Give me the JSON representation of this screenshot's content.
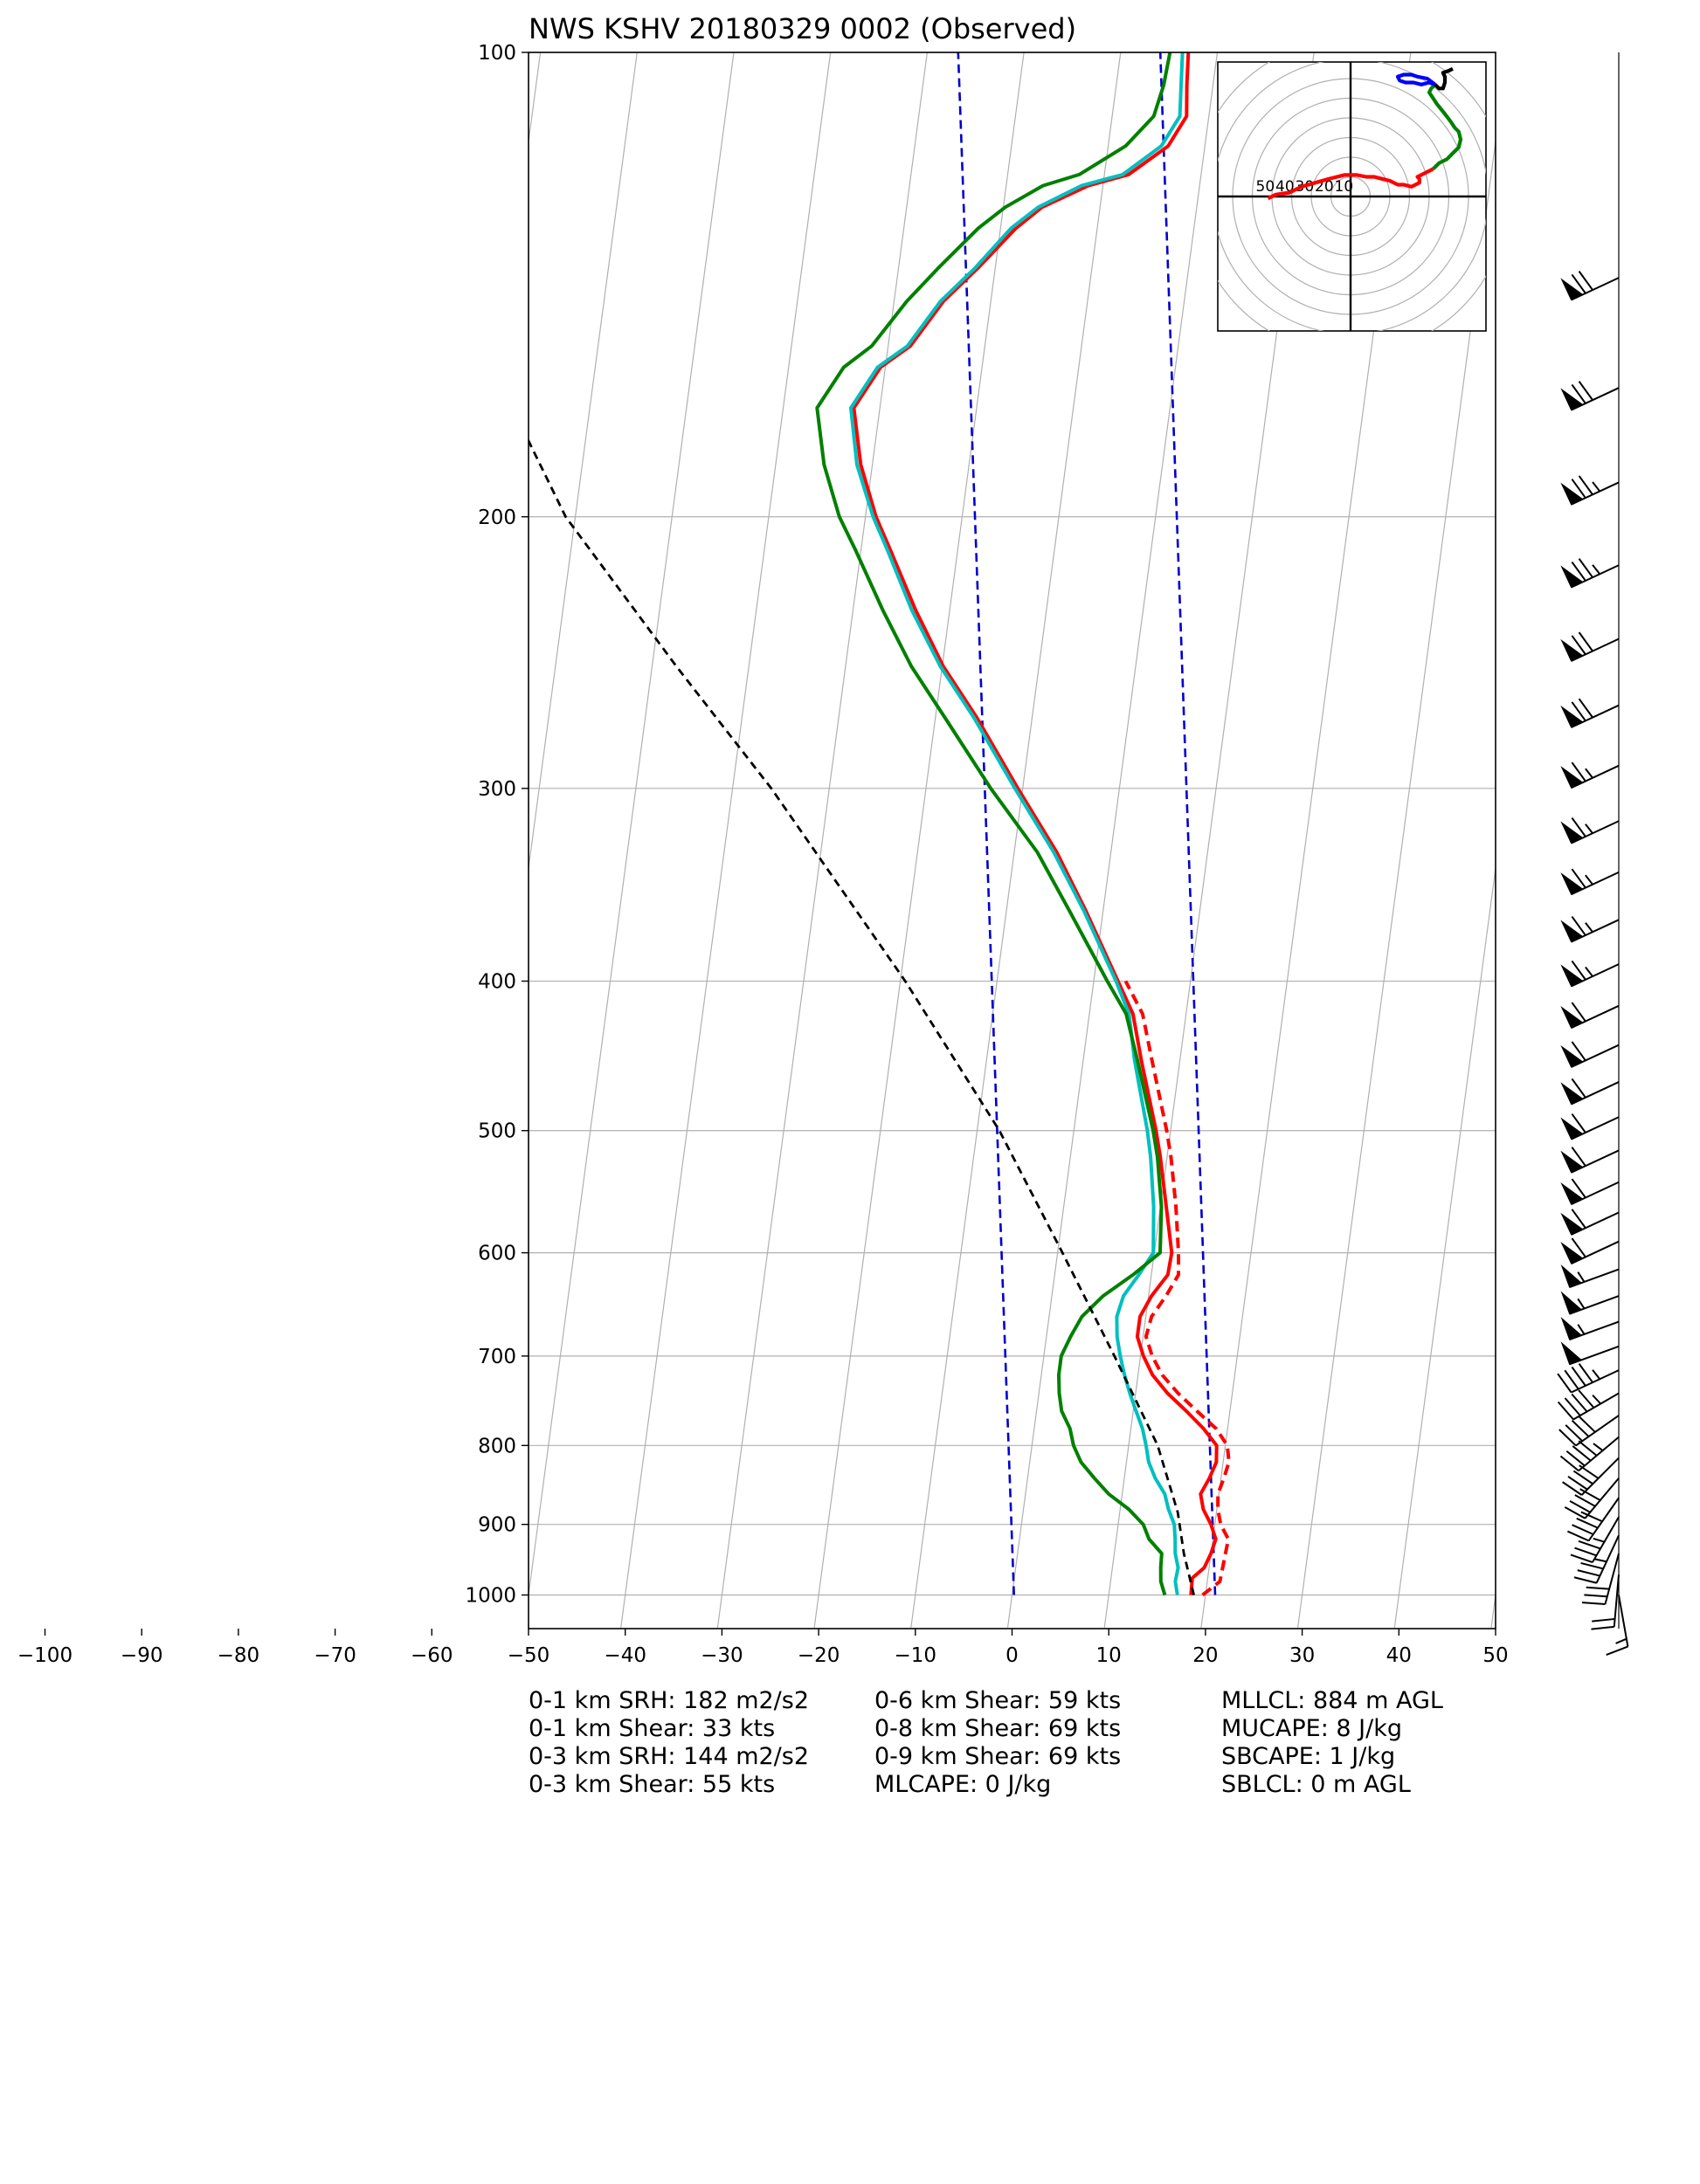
{
  "chart_data": {
    "type": "line",
    "subtype": "skew-t log-p sounding",
    "title": "NWS KSHV 20180329 0002   (Observed)",
    "xlim": [
      -100,
      50
    ],
    "plot_xlim": [
      -50,
      50
    ],
    "ylim": [
      1050,
      100
    ],
    "y_scale": "log",
    "x_ticks": [
      "−100",
      "−90",
      "−80",
      "−70",
      "−60",
      "−50",
      "−40",
      "−30",
      "−20",
      "−10",
      "0",
      "10",
      "20",
      "30",
      "40",
      "50"
    ],
    "y_ticks": [
      "100",
      "200",
      "300",
      "400",
      "500",
      "600",
      "700",
      "800",
      "900",
      "1000"
    ],
    "grid": true,
    "series": [
      {
        "color": "#ff0000",
        "style": "solid",
        "points": [
          [
            1000,
            18.5
          ],
          [
            975,
            18.4
          ],
          [
            960,
            19.5
          ],
          [
            940,
            20
          ],
          [
            920,
            20.3
          ],
          [
            900,
            19.6
          ],
          [
            880,
            18.6
          ],
          [
            860,
            18.1
          ],
          [
            840,
            18.8
          ],
          [
            820,
            19.3
          ],
          [
            800,
            19.1
          ],
          [
            780,
            17.5
          ],
          [
            760,
            15.5
          ],
          [
            740,
            13.3
          ],
          [
            720,
            11.5
          ],
          [
            700,
            10.3
          ],
          [
            680,
            9.4
          ],
          [
            660,
            9.4
          ],
          [
            640,
            10.3
          ],
          [
            620,
            11.7
          ],
          [
            600,
            11.8
          ],
          [
            560,
            10.6
          ],
          [
            520,
            9.3
          ],
          [
            500,
            8.5
          ],
          [
            450,
            6
          ],
          [
            420,
            4.5
          ],
          [
            400,
            2.5
          ],
          [
            360,
            -1.8
          ],
          [
            330,
            -5.6
          ],
          [
            300,
            -10.5
          ],
          [
            270,
            -15.7
          ],
          [
            250,
            -19.9
          ],
          [
            230,
            -23.5
          ],
          [
            210,
            -27
          ],
          [
            200,
            -28.9
          ],
          [
            185,
            -31.2
          ],
          [
            170,
            -32.7
          ],
          [
            160,
            -30.5
          ],
          [
            155,
            -27.7
          ],
          [
            145,
            -24.9
          ],
          [
            138,
            -21.8
          ],
          [
            130,
            -18.4
          ],
          [
            126,
            -16
          ],
          [
            122,
            -11.5
          ],
          [
            120,
            -7.5
          ],
          [
            115,
            -3.8
          ],
          [
            110,
            -2.3
          ],
          [
            105,
            -2.7
          ],
          [
            100,
            -3
          ]
        ]
      },
      {
        "color": "#ff0000",
        "style": "dashed",
        "points": [
          [
            1000,
            19.7
          ],
          [
            980,
            21.3
          ],
          [
            960,
            21.4
          ],
          [
            940,
            21.5
          ],
          [
            920,
            21.6
          ],
          [
            900,
            20.6
          ],
          [
            880,
            20.1
          ],
          [
            860,
            19.9
          ],
          [
            840,
            20.3
          ],
          [
            820,
            20.6
          ],
          [
            800,
            20.2
          ],
          [
            780,
            18.8
          ],
          [
            760,
            16.6
          ],
          [
            740,
            14.4
          ],
          [
            720,
            12.5
          ],
          [
            700,
            11.2
          ],
          [
            680,
            10.3
          ],
          [
            660,
            10.6
          ],
          [
            640,
            11.8
          ],
          [
            620,
            12.8
          ],
          [
            600,
            12.5
          ],
          [
            560,
            11.6
          ],
          [
            520,
            10.4
          ],
          [
            500,
            9.6
          ],
          [
            450,
            7.1
          ],
          [
            420,
            5.5
          ],
          [
            400,
            3.3
          ]
        ]
      },
      {
        "color": "#00bfbf",
        "style": "solid",
        "points": [
          [
            1000,
            17.1
          ],
          [
            980,
            16.7
          ],
          [
            960,
            16.8
          ],
          [
            940,
            16.3
          ],
          [
            920,
            16.1
          ],
          [
            900,
            15.8
          ],
          [
            880,
            15
          ],
          [
            860,
            14.4
          ],
          [
            840,
            13.2
          ],
          [
            820,
            12.3
          ],
          [
            800,
            11.8
          ],
          [
            780,
            11.2
          ],
          [
            760,
            10.3
          ],
          [
            740,
            9.4
          ],
          [
            720,
            8.6
          ],
          [
            700,
            7.9
          ],
          [
            680,
            7.3
          ],
          [
            660,
            7
          ],
          [
            640,
            7.4
          ],
          [
            620,
            8.7
          ],
          [
            600,
            9.9
          ],
          [
            560,
            9.3
          ],
          [
            520,
            8.3
          ],
          [
            500,
            7.6
          ],
          [
            450,
            5.3
          ],
          [
            420,
            4.1
          ],
          [
            400,
            2.3
          ],
          [
            360,
            -2
          ],
          [
            330,
            -5.9
          ],
          [
            300,
            -10.8
          ],
          [
            270,
            -16
          ],
          [
            250,
            -20.2
          ],
          [
            230,
            -23.9
          ],
          [
            210,
            -27.3
          ],
          [
            200,
            -29.2
          ],
          [
            185,
            -31.6
          ],
          [
            170,
            -33
          ],
          [
            160,
            -30.8
          ],
          [
            155,
            -28
          ],
          [
            145,
            -25.2
          ],
          [
            138,
            -22.1
          ],
          [
            130,
            -18.9
          ],
          [
            126,
            -16.4
          ],
          [
            122,
            -12.2
          ],
          [
            120,
            -8.1
          ],
          [
            115,
            -4.5
          ],
          [
            110,
            -3
          ],
          [
            105,
            -3.3
          ],
          [
            100,
            -3.6
          ]
        ]
      },
      {
        "color": "#008000",
        "style": "solid",
        "points": [
          [
            1000,
            15.8
          ],
          [
            980,
            15.2
          ],
          [
            960,
            15
          ],
          [
            940,
            14.9
          ],
          [
            920,
            13.4
          ],
          [
            900,
            12.6
          ],
          [
            880,
            10.9
          ],
          [
            860,
            8.6
          ],
          [
            840,
            6.9
          ],
          [
            820,
            5.3
          ],
          [
            800,
            4.3
          ],
          [
            780,
            3.7
          ],
          [
            760,
            2.6
          ],
          [
            740,
            2.1
          ],
          [
            720,
            1.8
          ],
          [
            700,
            1.8
          ],
          [
            680,
            2.5
          ],
          [
            660,
            3.4
          ],
          [
            640,
            5.3
          ],
          [
            620,
            8.1
          ],
          [
            600,
            10.6
          ],
          [
            560,
            10.1
          ],
          [
            520,
            9
          ],
          [
            500,
            8.2
          ],
          [
            450,
            5.6
          ],
          [
            420,
            3.8
          ],
          [
            400,
            1.4
          ],
          [
            360,
            -3.5
          ],
          [
            330,
            -7.6
          ],
          [
            300,
            -13.3
          ],
          [
            270,
            -19
          ],
          [
            250,
            -23.2
          ],
          [
            230,
            -26.9
          ],
          [
            210,
            -30.6
          ],
          [
            200,
            -32.7
          ],
          [
            185,
            -35
          ],
          [
            170,
            -36.5
          ],
          [
            160,
            -34.3
          ],
          [
            155,
            -31.7
          ],
          [
            145,
            -28.7
          ],
          [
            138,
            -25.9
          ],
          [
            130,
            -22.3
          ],
          [
            126,
            -19.8
          ],
          [
            122,
            -16.2
          ],
          [
            120,
            -12.6
          ],
          [
            115,
            -8.2
          ],
          [
            110,
            -5.7
          ],
          [
            105,
            -5.1
          ],
          [
            100,
            -4.9
          ]
        ]
      },
      {
        "color": "#000000",
        "style": "dashed",
        "points": [
          [
            1000,
            18.8
          ],
          [
            940,
            17.2
          ],
          [
            884,
            16
          ],
          [
            800,
            13
          ],
          [
            700,
            7.3
          ],
          [
            600,
            0.5
          ],
          [
            500,
            -7.7
          ],
          [
            400,
            -19.5
          ],
          [
            300,
            -36
          ],
          [
            250,
            -47.5
          ],
          [
            200,
            -61
          ],
          [
            170,
            -68
          ],
          [
            150,
            -73
          ],
          [
            130,
            -79
          ],
          [
            110,
            -87
          ],
          [
            100,
            -91
          ]
        ]
      }
    ],
    "mixing_lines": [
      {
        "color": "#0000cd",
        "style": "dashed",
        "points": [
          [
            1000,
            0.2
          ],
          [
            100,
            -26.8
          ]
        ]
      },
      {
        "color": "#0000cd",
        "style": "dashed",
        "points": [
          [
            1000,
            21
          ],
          [
            100,
            -5.9
          ]
        ]
      }
    ],
    "dry_adiabat_theta_K": [
      250,
      270,
      290,
      310,
      330,
      350,
      370,
      390,
      410,
      430,
      450,
      470,
      490,
      510,
      530
    ],
    "wind_barbs": {
      "levels_hPa": [
        1000,
        970,
        940,
        915,
        890,
        865,
        840,
        815,
        790,
        765,
        740,
        715,
        690,
        665,
        640,
        615,
        590,
        565,
        540,
        515,
        490,
        465,
        440,
        415,
        390,
        365,
        340,
        315,
        290,
        265,
        240,
        215,
        190,
        165,
        140
      ],
      "speed_kt": [
        15,
        20,
        30,
        35,
        35,
        40,
        40,
        40,
        45,
        40,
        45,
        45,
        50,
        55,
        55,
        55,
        60,
        60,
        60,
        60,
        60,
        60,
        60,
        60,
        65,
        65,
        65,
        65,
        65,
        70,
        70,
        75,
        75,
        70,
        70
      ],
      "dir_deg": [
        170,
        185,
        195,
        205,
        210,
        215,
        220,
        225,
        230,
        235,
        240,
        245,
        250,
        250,
        250,
        250,
        245,
        245,
        245,
        245,
        245,
        245,
        245,
        245,
        245,
        245,
        245,
        245,
        245,
        245,
        245,
        245,
        245,
        245,
        245
      ]
    },
    "hodograph": {
      "ring_labels": [
        "50",
        "40",
        "30",
        "20",
        "10"
      ],
      "rings_kt": [
        10,
        20,
        30,
        40,
        50,
        60,
        70,
        80
      ],
      "traces": [
        {
          "color": "#ff0000",
          "points": [
            [
              -42,
              -1
            ],
            [
              -38,
              1
            ],
            [
              -31,
              2
            ],
            [
              -25,
              5
            ],
            [
              -18,
              7
            ],
            [
              -11,
              9
            ],
            [
              -3,
              11
            ],
            [
              3,
              11
            ],
            [
              8,
              10
            ],
            [
              12,
              10
            ],
            [
              16,
              9
            ],
            [
              20,
              8
            ],
            [
              24,
              6
            ],
            [
              27,
              6
            ],
            [
              31,
              5
            ],
            [
              35,
              7
            ],
            [
              35,
              9
            ],
            [
              34,
              10
            ],
            [
              36,
              11
            ],
            [
              40,
              13
            ],
            [
              42,
              14
            ]
          ]
        },
        {
          "color": "#008000",
          "points": [
            [
              42,
              14
            ],
            [
              45,
              17
            ],
            [
              49,
              19
            ],
            [
              52,
              22
            ],
            [
              55,
              25
            ],
            [
              56,
              29
            ],
            [
              55,
              33
            ],
            [
              53,
              35
            ],
            [
              51,
              38
            ],
            [
              48,
              42
            ],
            [
              44,
              47
            ],
            [
              42,
              50
            ],
            [
              40,
              53
            ],
            [
              41,
              55
            ],
            [
              43,
              57
            ]
          ]
        },
        {
          "color": "#0000ff",
          "points": [
            [
              43,
              57
            ],
            [
              39,
              60
            ],
            [
              34,
              61
            ],
            [
              31,
              62
            ],
            [
              27,
              62
            ],
            [
              24,
              61
            ],
            [
              25,
              59
            ],
            [
              28,
              58
            ],
            [
              32,
              58
            ],
            [
              36,
              57
            ],
            [
              40,
              58
            ],
            [
              43,
              57
            ]
          ]
        },
        {
          "color": "#000000",
          "points": [
            [
              43,
              57
            ],
            [
              45,
              55
            ],
            [
              47,
              55
            ],
            [
              48,
              58
            ],
            [
              48,
              61
            ],
            [
              47,
              63
            ],
            [
              50,
              64
            ],
            [
              52,
              65
            ]
          ]
        }
      ]
    }
  },
  "stats": {
    "col1": [
      "0-1 km SRH: 182 m2/s2",
      "0-1 km Shear: 33 kts",
      "0-3 km SRH: 144 m2/s2",
      "0-3 km Shear: 55 kts"
    ],
    "col2": [
      "0-6 km Shear: 59 kts",
      "0-8 km Shear: 69 kts",
      "0-9 km Shear: 69 kts",
      "MLCAPE: 0 J/kg"
    ],
    "col3": [
      "MLLCL: 884 m AGL",
      "MUCAPE: 8 J/kg",
      "SBCAPE: 1 J/kg",
      "SBLCL: 0 m AGL"
    ]
  }
}
